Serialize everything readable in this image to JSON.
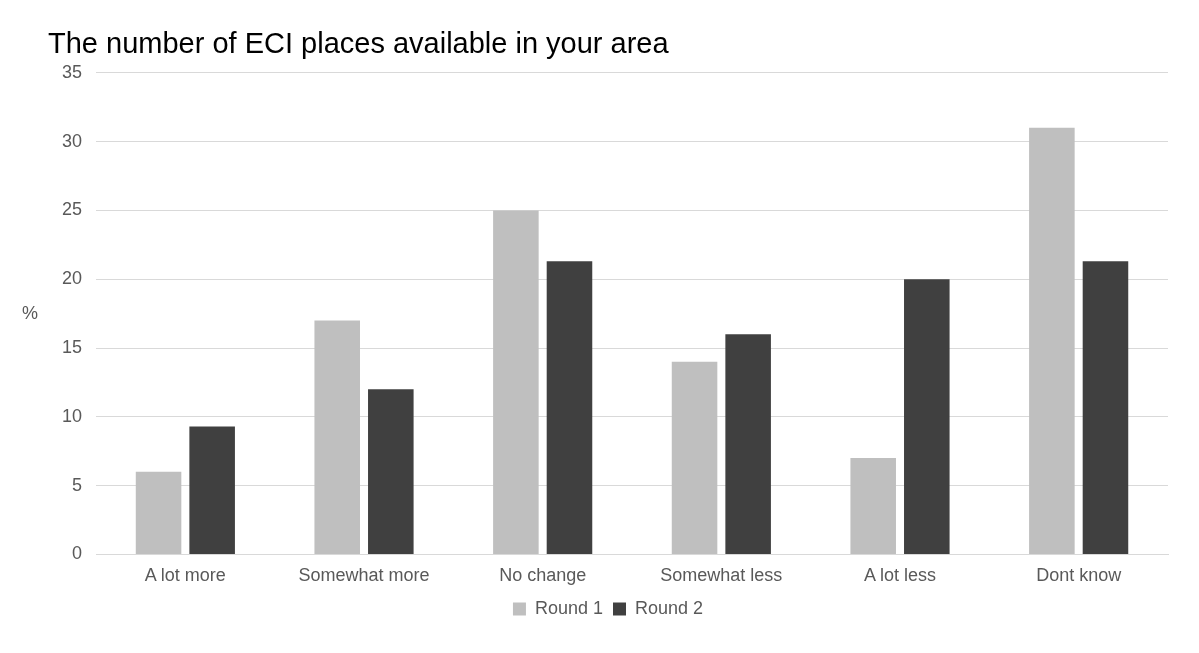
{
  "chart_data": {
    "type": "bar",
    "title": "The number of ECI places available in your area",
    "ylabel": "%",
    "categories": [
      "A lot more",
      "Somewhat more",
      "No change",
      "Somewhat less",
      "A lot less",
      "Dont know"
    ],
    "series": [
      {
        "name": "Round 1",
        "color": "#bfbfbf",
        "values": [
          6,
          17,
          25,
          14,
          7,
          31
        ]
      },
      {
        "name": "Round 2",
        "color": "#404040",
        "values": [
          9.3,
          12,
          21.3,
          16,
          20,
          21.3
        ]
      }
    ],
    "ylim": [
      0,
      35
    ],
    "yticks": [
      0,
      5,
      10,
      15,
      20,
      25,
      30,
      35
    ],
    "grid": "y",
    "legend": "bottom"
  }
}
